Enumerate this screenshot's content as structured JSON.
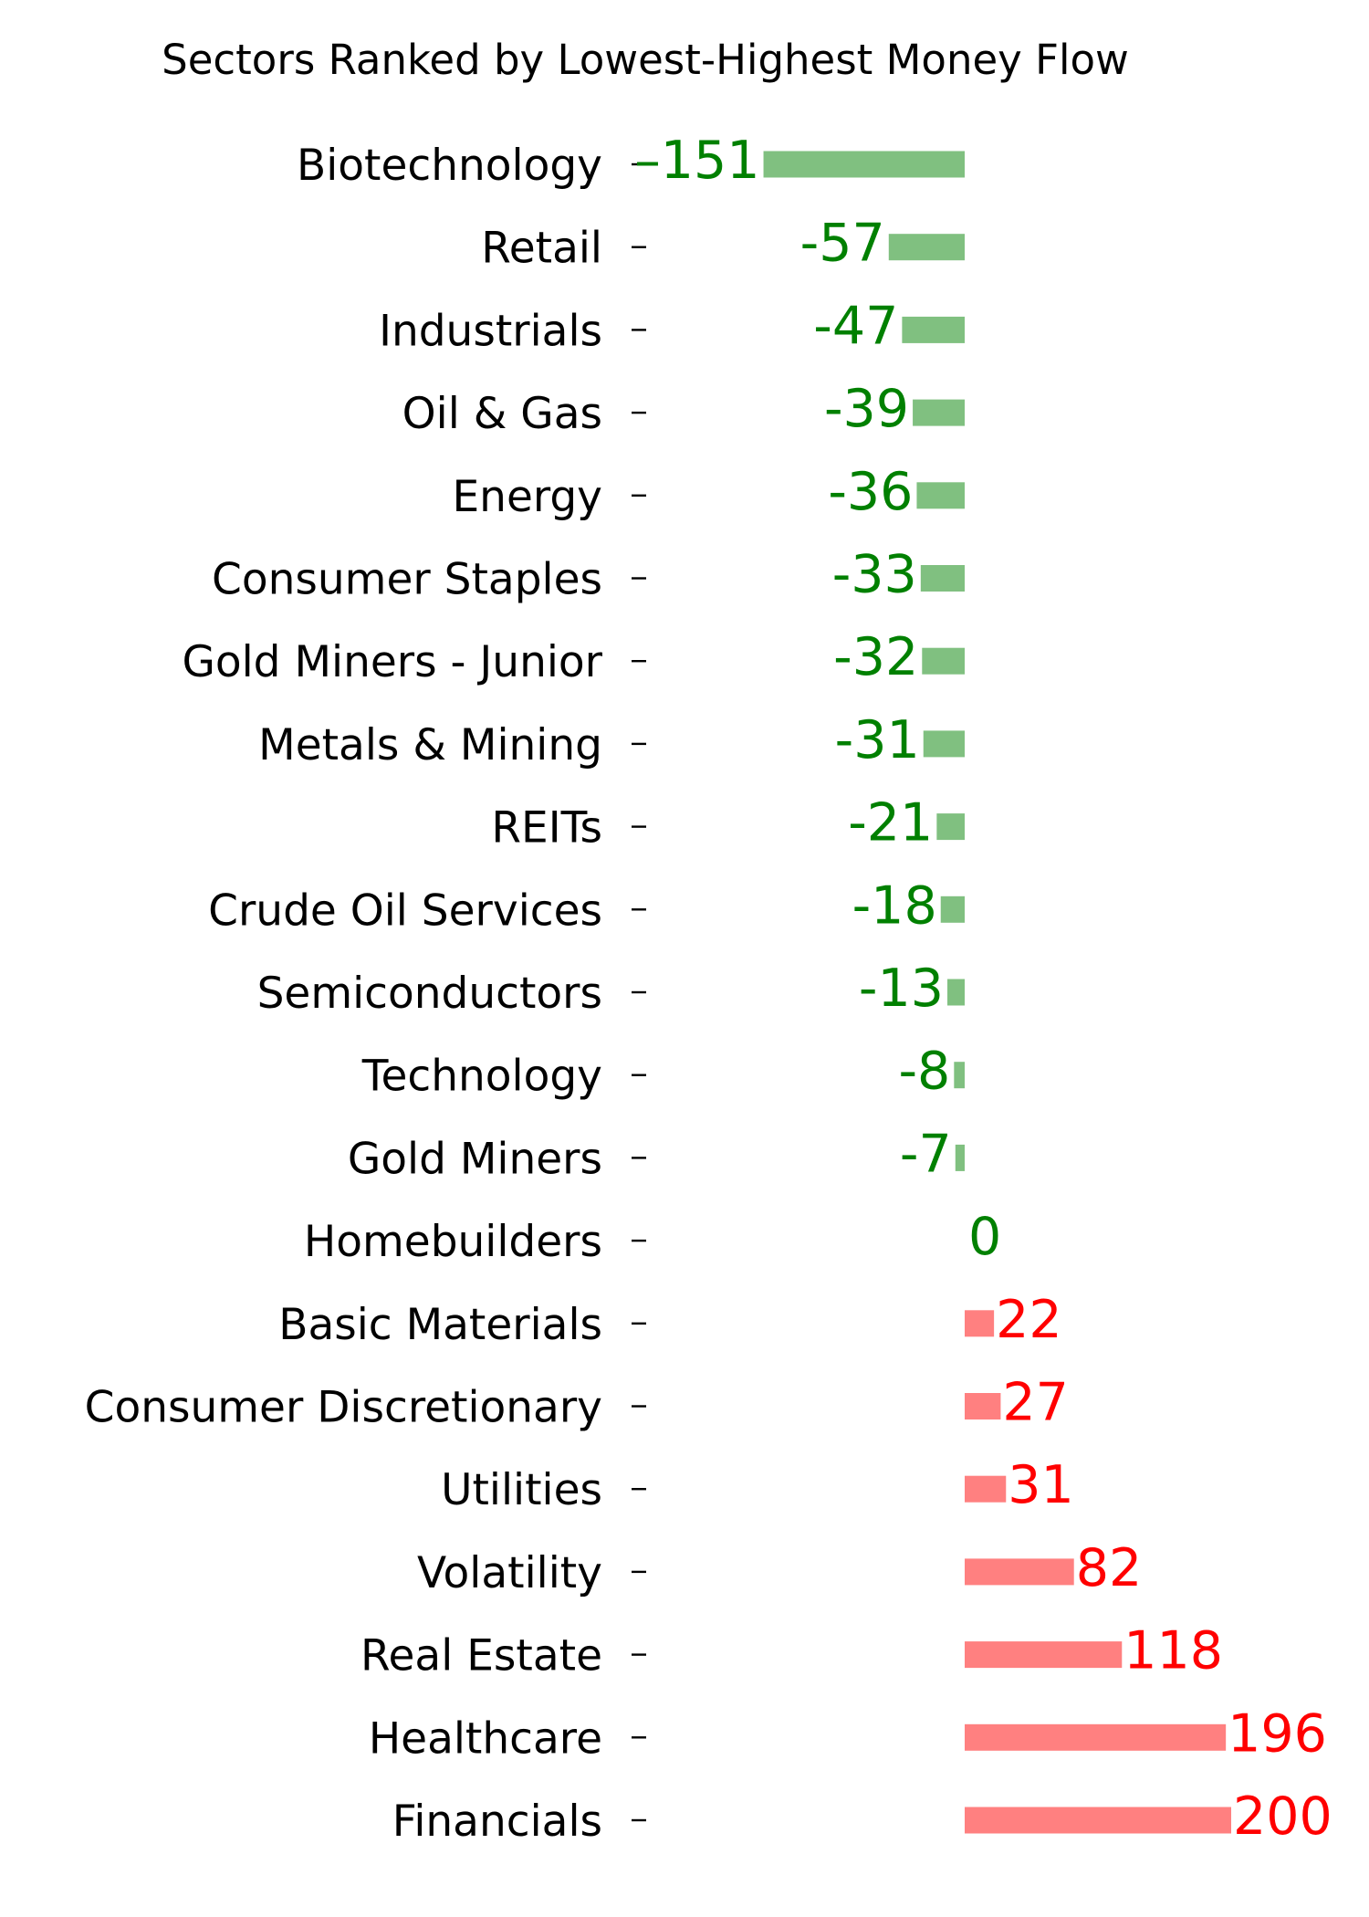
{
  "chart_data": {
    "type": "bar",
    "orientation": "horizontal",
    "title": "Sectors Ranked by Lowest-Highest Money Flow",
    "xlabel": "",
    "ylabel": "",
    "categories": [
      "Biotechnology",
      "Retail",
      "Industrials",
      "Oil & Gas",
      "Energy",
      "Consumer Staples",
      "Gold Miners - Junior",
      "Metals & Mining",
      "REITs",
      "Crude Oil Services",
      "Semiconductors",
      "Technology",
      "Gold Miners",
      "Homebuilders",
      "Basic Materials",
      "Consumer Discretionary",
      "Utilities",
      "Volatility",
      "Real Estate",
      "Healthcare",
      "Financials"
    ],
    "values": [
      -151,
      -57,
      -47,
      -39,
      -36,
      -33,
      -32,
      -31,
      -21,
      -18,
      -13,
      -8,
      -7,
      0,
      22,
      27,
      31,
      82,
      118,
      196,
      200
    ],
    "value_labels": [
      "–151",
      "-57",
      "-47",
      "-39",
      "-36",
      "-33",
      "-32",
      "-31",
      "-21",
      "-18",
      "-13",
      "-8",
      "-7",
      "0",
      "22",
      "27",
      "31",
      "82",
      "118",
      "196",
      "200"
    ],
    "grid": false,
    "legend": "none",
    "colors": {
      "negative_bar": "#80c080",
      "positive_bar": "#ff8080",
      "negative_label": "#008000",
      "positive_label": "#ff0000"
    }
  }
}
